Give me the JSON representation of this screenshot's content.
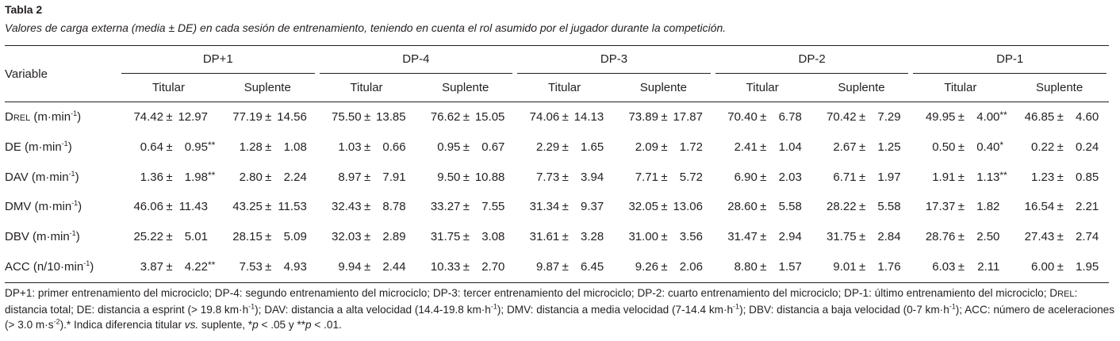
{
  "header": {
    "title": "Tabla 2",
    "subtitle": "Valores de carga externa (media ± DE) en cada sesión de entrenamiento, teniendo en cuenta el rol asumido por el jugador durante la competición."
  },
  "table": {
    "variable_header": "Variable",
    "pm": "±",
    "groups": [
      {
        "name": "DP+1",
        "sub": [
          "Titular",
          "Suplente"
        ]
      },
      {
        "name": "DP-4",
        "sub": [
          "Titular",
          "Suplente"
        ]
      },
      {
        "name": "DP-3",
        "sub": [
          "Titular",
          "Suplente"
        ]
      },
      {
        "name": "DP-2",
        "sub": [
          "Titular",
          "Suplente"
        ]
      },
      {
        "name": "DP-1",
        "sub": [
          "Titular",
          "Suplente"
        ]
      }
    ],
    "rows": [
      {
        "label": [
          {
            "t": "D"
          },
          {
            "t": "REL",
            "sc": true
          },
          {
            "t": " (m·min"
          },
          {
            "t": "-1",
            "sup": true
          },
          {
            "t": ")"
          }
        ],
        "cells": [
          [
            "74.42",
            "12.97"
          ],
          [
            "77.19",
            "14.56"
          ],
          [
            "75.50",
            "13.85"
          ],
          [
            "76.62",
            "15.05"
          ],
          [
            "74.06",
            "14.13"
          ],
          [
            "73.89",
            "17.87"
          ],
          [
            "70.40",
            "6.78"
          ],
          [
            "70.42",
            "7.29"
          ],
          [
            "49.95",
            "4.00",
            "**"
          ],
          [
            "46.85",
            "4.60"
          ]
        ]
      },
      {
        "label": [
          {
            "t": "DE (m·min"
          },
          {
            "t": "-1",
            "sup": true
          },
          {
            "t": ")"
          }
        ],
        "cells": [
          [
            "0.64",
            "0.95",
            "**"
          ],
          [
            "1.28",
            "1.08"
          ],
          [
            "1.03",
            "0.66"
          ],
          [
            "0.95",
            "0.67"
          ],
          [
            "2.29",
            "1.65"
          ],
          [
            "2.09",
            "1.72"
          ],
          [
            "2.41",
            "1.04"
          ],
          [
            "2.67",
            "1.25"
          ],
          [
            "0.50",
            "0.40",
            "*"
          ],
          [
            "0.22",
            "0.24"
          ]
        ]
      },
      {
        "label": [
          {
            "t": "DAV (m·min"
          },
          {
            "t": "-1",
            "sup": true
          },
          {
            "t": ")"
          }
        ],
        "cells": [
          [
            "1.36",
            "1.98",
            "**"
          ],
          [
            "2.80",
            "2.24"
          ],
          [
            "8.97",
            "7.91"
          ],
          [
            "9.50",
            "10.88"
          ],
          [
            "7.73",
            "3.94"
          ],
          [
            "7.71",
            "5.72"
          ],
          [
            "6.90",
            "2.03"
          ],
          [
            "6.71",
            "1.97"
          ],
          [
            "1.91",
            "1.13",
            "**"
          ],
          [
            "1.23",
            "0.85"
          ]
        ]
      },
      {
        "label": [
          {
            "t": "DMV (m·min"
          },
          {
            "t": "-1",
            "sup": true
          },
          {
            "t": ")"
          }
        ],
        "cells": [
          [
            "46.06",
            "11.43"
          ],
          [
            "43.25",
            "11.53"
          ],
          [
            "32.43",
            "8.78"
          ],
          [
            "33.27",
            "7.55"
          ],
          [
            "31.34",
            "9.37"
          ],
          [
            "32.05",
            "13.06"
          ],
          [
            "28.60",
            "5.58"
          ],
          [
            "28.22",
            "5.58"
          ],
          [
            "17.37",
            "1.82"
          ],
          [
            "16.54",
            "2.21"
          ]
        ]
      },
      {
        "label": [
          {
            "t": "DBV (m·min"
          },
          {
            "t": "-1",
            "sup": true
          },
          {
            "t": ")"
          }
        ],
        "cells": [
          [
            "25.22",
            "5.01"
          ],
          [
            "28.15",
            "5.09"
          ],
          [
            "32.03",
            "2.89"
          ],
          [
            "31.75",
            "3.08"
          ],
          [
            "31.61",
            "3.28"
          ],
          [
            "31.00",
            "3.56"
          ],
          [
            "31.47",
            "2.94"
          ],
          [
            "31.75",
            "2.84"
          ],
          [
            "28.76",
            "2.50"
          ],
          [
            "27.43",
            "2.74"
          ]
        ]
      },
      {
        "label": [
          {
            "t": "ACC (n/10·min"
          },
          {
            "t": "-1",
            "sup": true
          },
          {
            "t": ")"
          }
        ],
        "cells": [
          [
            "3.87",
            "4.22",
            "**"
          ],
          [
            "7.53",
            "4.93"
          ],
          [
            "9.94",
            "2.44"
          ],
          [
            "10.33",
            "2.70"
          ],
          [
            "9.87",
            "6.45"
          ],
          [
            "9.26",
            "2.06"
          ],
          [
            "8.80",
            "1.57"
          ],
          [
            "9.01",
            "1.76"
          ],
          [
            "6.03",
            "2.11"
          ],
          [
            "6.00",
            "1.95"
          ]
        ]
      }
    ]
  },
  "footnote": [
    {
      "t": "DP+1: primer entrenamiento del microciclo; DP-4: segundo entrenamiento del microciclo; DP-3: tercer entrenamiento del microciclo; DP-2: cuarto entrenamiento del microciclo; DP-1: último entrenamiento del microciclo; "
    },
    {
      "t": "D"
    },
    {
      "t": "REL",
      "sc": true
    },
    {
      "t": ": distancia total; DE: distancia a esprint (> 19.8 km·h"
    },
    {
      "t": "-1",
      "sup": true
    },
    {
      "t": "); DAV: distancia a alta velocidad (14.4-19.8 km·h"
    },
    {
      "t": "-1",
      "sup": true
    },
    {
      "t": "); DMV: distancia a media velocidad (7-14.4 km·h"
    },
    {
      "t": "-1",
      "sup": true
    },
    {
      "t": "); DBV: distancia a baja velocidad (0-7 km·h"
    },
    {
      "t": "-1",
      "sup": true
    },
    {
      "t": "); ACC: número de aceleraciones (> 3.0 m·s"
    },
    {
      "t": "-2",
      "sup": true
    },
    {
      "t": ").* Indica diferencia titular "
    },
    {
      "t": "vs.",
      "i": true
    },
    {
      "t": " suplente, *"
    },
    {
      "t": "p",
      "i": true
    },
    {
      "t": " < .05 y **"
    },
    {
      "t": "p",
      "i": true
    },
    {
      "t": " < .01."
    }
  ]
}
